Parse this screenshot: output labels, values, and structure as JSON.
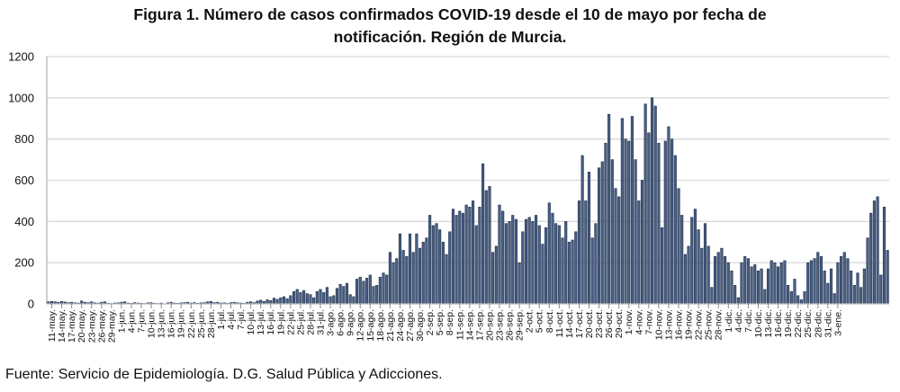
{
  "chart_data": {
    "type": "bar",
    "title_line1": "Figura 1. Número de casos confirmados COVID-19 desde el 10 de mayo por fecha de",
    "title_line2": "notificación. Región de Murcia.",
    "xlabel": "",
    "ylabel": "",
    "ylim": [
      0,
      1200
    ],
    "yticks": [
      "0",
      "200",
      "400",
      "600",
      "800",
      "1000",
      "1200"
    ],
    "grid": true,
    "bar_color": "#4a6186",
    "bar_edge_color": "#1d2d4a",
    "tick_labels": [
      "11-may.",
      "14-may.",
      "17-may.",
      "20-may.",
      "23-may.",
      "26-may.",
      "29-may.",
      "1-jun.",
      "4-jun.",
      "7-jun.",
      "10-jun.",
      "13-jun.",
      "16-jun.",
      "19-jun.",
      "22-jun.",
      "25-jun.",
      "28-jun.",
      "1-jul.",
      "4-jul.",
      "7-jul.",
      "10-jul.",
      "13-jul.",
      "16-jul.",
      "19-jul.",
      "22-jul.",
      "25-jul.",
      "28-jul.",
      "31-jul.",
      "3-ago.",
      "6-ago.",
      "9-ago.",
      "12-ago.",
      "15-ago.",
      "18-ago.",
      "21-ago.",
      "24-ago.",
      "27-ago.",
      "30-ago.",
      "2-sep.",
      "5-sep.",
      "8-sep.",
      "11-sep.",
      "14-sep.",
      "17-sep.",
      "20-sep.",
      "23-sep.",
      "26-sep.",
      "29-sep.",
      "2-oct.",
      "5-oct.",
      "8-oct.",
      "11-oct.",
      "14-oct.",
      "17-oct.",
      "20-oct.",
      "23-oct.",
      "26-oct.",
      "29-oct.",
      "1-nov.",
      "4-nov.",
      "7-nov.",
      "10-nov.",
      "13-nov.",
      "16-nov.",
      "19-nov.",
      "22-nov.",
      "25-nov.",
      "28-nov.",
      "1-dic.",
      "4-dic.",
      "7-dic.",
      "10-dic.",
      "13-dic.",
      "16-dic.",
      "19-dic.",
      "22-dic.",
      "25-dic.",
      "28-dic.",
      "31-dic.",
      "3-ene."
    ],
    "first_date": "10-may.",
    "tick_every": 3,
    "tick_offset": 1,
    "values": [
      10,
      12,
      10,
      8,
      12,
      9,
      6,
      8,
      5,
      4,
      14,
      8,
      6,
      10,
      5,
      4,
      8,
      10,
      3,
      2,
      4,
      5,
      8,
      10,
      4,
      3,
      6,
      4,
      3,
      2,
      5,
      6,
      3,
      2,
      4,
      1,
      5,
      8,
      4,
      3,
      5,
      6,
      8,
      4,
      6,
      3,
      5,
      6,
      10,
      12,
      6,
      8,
      4,
      5,
      3,
      6,
      8,
      5,
      4,
      3,
      8,
      10,
      6,
      14,
      18,
      12,
      20,
      16,
      28,
      22,
      30,
      35,
      25,
      40,
      60,
      70,
      55,
      65,
      50,
      45,
      30,
      60,
      70,
      55,
      80,
      35,
      40,
      75,
      95,
      85,
      100,
      45,
      35,
      120,
      130,
      110,
      125,
      140,
      85,
      90,
      130,
      150,
      140,
      250,
      200,
      220,
      340,
      260,
      230,
      340,
      250,
      340,
      270,
      300,
      320,
      430,
      380,
      390,
      360,
      300,
      240,
      350,
      460,
      430,
      450,
      440,
      480,
      470,
      500,
      380,
      470,
      680,
      550,
      570,
      250,
      280,
      480,
      450,
      390,
      400,
      430,
      410,
      200,
      350,
      410,
      420,
      400,
      430,
      380,
      290,
      370,
      490,
      440,
      390,
      380,
      320,
      400,
      300,
      310,
      350,
      500,
      720,
      500,
      640,
      320,
      390,
      660,
      690,
      780,
      920,
      700,
      560,
      520,
      900,
      800,
      790,
      910,
      700,
      500,
      600,
      970,
      830,
      1000,
      960,
      780,
      370,
      790,
      860,
      800,
      720,
      560,
      430,
      240,
      280,
      420,
      460,
      360,
      270,
      390,
      280,
      80,
      230,
      250,
      270,
      230,
      200,
      160,
      90,
      30,
      200,
      230,
      220,
      180,
      190,
      160,
      170,
      70,
      170,
      210,
      200,
      180,
      200,
      210,
      90,
      60,
      120,
      40,
      20,
      60,
      200,
      210,
      220,
      250,
      230,
      160,
      100,
      170,
      50,
      200,
      230,
      250,
      220,
      160,
      90,
      150,
      80,
      170,
      320,
      440,
      500,
      520,
      140,
      470,
      260
    ]
  },
  "footer": "Fuente: Servicio de Epidemiología. D.G. Salud Pública y Adicciones."
}
